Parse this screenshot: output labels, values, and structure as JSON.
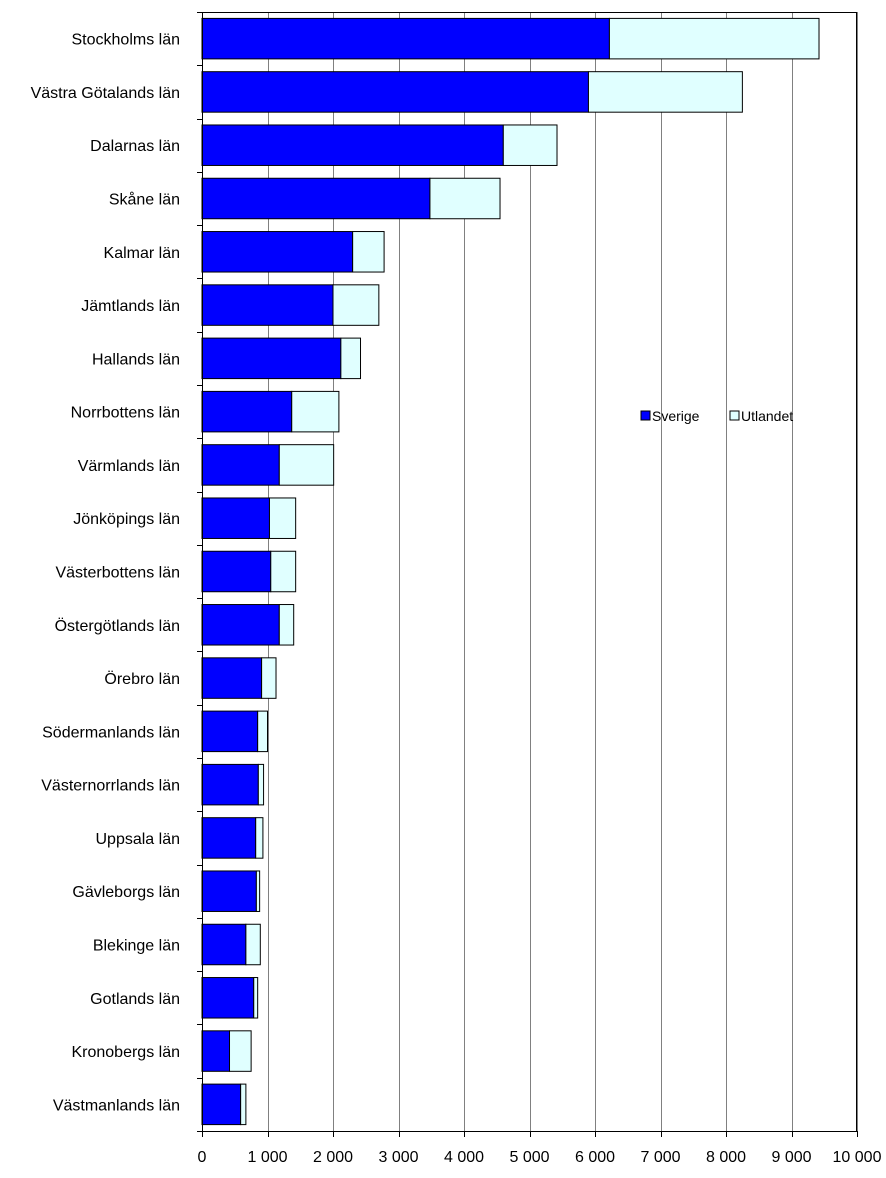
{
  "chart_data": {
    "type": "bar",
    "orientation": "horizontal",
    "stacked": true,
    "title": "",
    "xlabel": "",
    "ylabel": "",
    "xlim": [
      0,
      10000
    ],
    "x_ticks": [
      0,
      1000,
      2000,
      3000,
      4000,
      5000,
      6000,
      7000,
      8000,
      9000,
      10000
    ],
    "x_tick_labels": [
      "0",
      "1 000",
      "2 000",
      "3 000",
      "4 000",
      "5 000",
      "6 000",
      "7 000",
      "8 000",
      "9 000",
      "10 000"
    ],
    "grid": "vertical",
    "legend_position": "right-middle",
    "categories": [
      "Stockholms län",
      "Västra Götalands län",
      "Dalarnas län",
      "Skåne län",
      "Kalmar län",
      "Jämtlands län",
      "Hallands län",
      "Norrbottens län",
      "Värmlands län",
      "Jönköpings län",
      "Västerbottens län",
      "Östergötlands län",
      "Örebro län",
      "Södermanlands län",
      "Västernorrlands län",
      "Uppsala län",
      "Gävleborgs län",
      "Blekinge län",
      "Gotlands län",
      "Kronobergs län",
      "Västmanlands län"
    ],
    "series": [
      {
        "name": "Sverige",
        "color": "#0000FF",
        "values": [
          6220,
          5900,
          4600,
          3480,
          2300,
          2000,
          2120,
          1370,
          1180,
          1030,
          1050,
          1180,
          910,
          850,
          860,
          820,
          830,
          670,
          790,
          420,
          590
        ]
      },
      {
        "name": "Utlandet",
        "color": "#E0FFFF",
        "values": [
          3200,
          2350,
          820,
          1070,
          480,
          700,
          300,
          720,
          830,
          400,
          380,
          220,
          220,
          150,
          80,
          110,
          50,
          220,
          60,
          330,
          80
        ]
      }
    ]
  }
}
